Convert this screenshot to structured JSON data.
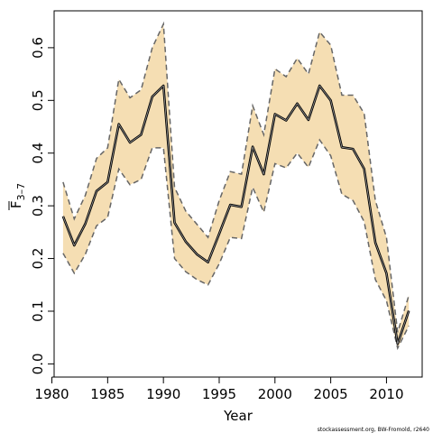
{
  "chart_data": {
    "type": "line",
    "title": "",
    "xlabel": "Year",
    "ylabel_base": "F",
    "ylabel_sub": "3–7",
    "xlim": [
      1980.2,
      2013.2
    ],
    "ylim": [
      -0.025,
      0.67
    ],
    "x_ticks": [
      1980,
      1985,
      1990,
      1995,
      2000,
      2005,
      2010
    ],
    "y_ticks": [
      0.0,
      0.1,
      0.2,
      0.3,
      0.4,
      0.5,
      0.6
    ],
    "y_tick_labels": [
      "0.0",
      "0.1",
      "0.2",
      "0.3",
      "0.4",
      "0.5",
      "0.6"
    ],
    "grid": false,
    "credit": "stockassessment.org, BW-Fromold, r2640",
    "colors": {
      "band_fill": "#f5deb3",
      "band_border": "#666666",
      "estimate": "#000000",
      "estimate_inner": "#999999"
    },
    "x": [
      1981,
      1982,
      1983,
      1984,
      1985,
      1986,
      1987,
      1988,
      1989,
      1990,
      1991,
      1992,
      1993,
      1994,
      1995,
      1996,
      1997,
      1998,
      1999,
      2000,
      2001,
      2002,
      2003,
      2004,
      2005,
      2006,
      2007,
      2008,
      2009,
      2010,
      2011,
      2012
    ],
    "series": [
      {
        "role": "estimate",
        "values": [
          0.28,
          0.225,
          0.266,
          0.328,
          0.345,
          0.455,
          0.42,
          0.435,
          0.507,
          0.528,
          0.268,
          0.232,
          0.208,
          0.193,
          0.247,
          0.302,
          0.298,
          0.412,
          0.36,
          0.474,
          0.462,
          0.494,
          0.463,
          0.528,
          0.5,
          0.411,
          0.408,
          0.37,
          0.23,
          0.172,
          0.038,
          0.101
        ]
      },
      {
        "role": "upper",
        "values": [
          0.345,
          0.275,
          0.32,
          0.39,
          0.41,
          0.54,
          0.505,
          0.52,
          0.6,
          0.645,
          0.335,
          0.29,
          0.265,
          0.24,
          0.31,
          0.365,
          0.36,
          0.49,
          0.435,
          0.56,
          0.545,
          0.58,
          0.55,
          0.63,
          0.605,
          0.51,
          0.51,
          0.475,
          0.31,
          0.24,
          0.06,
          0.13
        ]
      },
      {
        "role": "lower",
        "values": [
          0.21,
          0.172,
          0.208,
          0.262,
          0.278,
          0.37,
          0.34,
          0.35,
          0.41,
          0.41,
          0.2,
          0.175,
          0.16,
          0.15,
          0.19,
          0.24,
          0.238,
          0.335,
          0.288,
          0.38,
          0.372,
          0.4,
          0.373,
          0.425,
          0.395,
          0.322,
          0.31,
          0.27,
          0.16,
          0.12,
          0.03,
          0.072
        ]
      }
    ]
  }
}
